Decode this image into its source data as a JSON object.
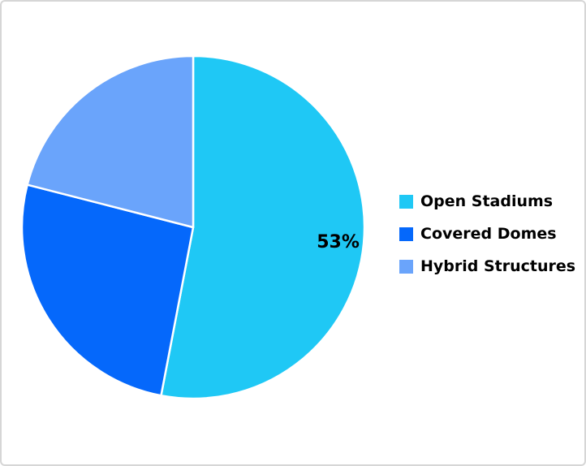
{
  "page": {
    "background_color": "#ffffff",
    "border_color": "#d6d6d6"
  },
  "chart_data": {
    "type": "pie",
    "title": "",
    "categories": [
      "Open Stadiums",
      "Covered Domes",
      "Hybrid Structures"
    ],
    "values": [
      53,
      26,
      21
    ],
    "unit": "%",
    "series": [
      {
        "name": "Open Stadiums",
        "value": 53,
        "color": "#1fc8f5",
        "slice_label": "53%"
      },
      {
        "name": "Covered Domes",
        "value": 26,
        "color": "#0568fb",
        "slice_label": null
      },
      {
        "name": "Hybrid Structures",
        "value": 21,
        "color": "#6aa4fb",
        "slice_label": null
      }
    ],
    "start_angle_deg": 0,
    "direction": "clockwise",
    "legend_position": "right",
    "slice_border_color": "#ffffff",
    "label_color": "#000000"
  }
}
